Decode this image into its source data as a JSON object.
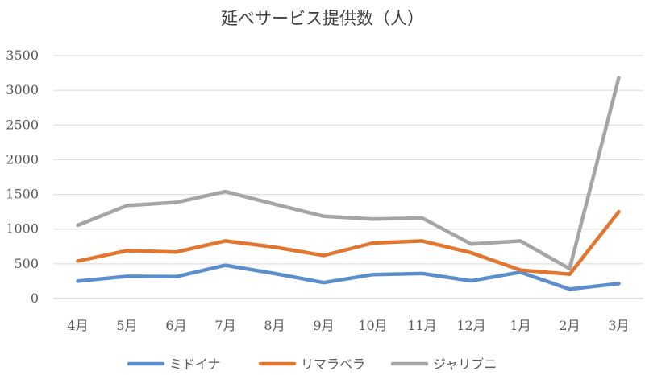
{
  "chart_data": {
    "type": "line",
    "title": "延べサービス提供数（人）",
    "categories": [
      "4月",
      "5月",
      "6月",
      "7月",
      "8月",
      "9月",
      "10月",
      "11月",
      "12月",
      "1月",
      "2月",
      "3月"
    ],
    "ylim": [
      0,
      3500
    ],
    "yticks": [
      0,
      500,
      1000,
      1500,
      2000,
      2500,
      3000,
      3500
    ],
    "grid": true,
    "legend_position": "bottom",
    "series": [
      {
        "name": "ミドイナ",
        "color": "#5b8fcc",
        "values": [
          250,
          320,
          315,
          480,
          360,
          230,
          345,
          360,
          255,
          380,
          135,
          215
        ]
      },
      {
        "name": "リマラベラ",
        "color": "#e0762f",
        "values": [
          540,
          690,
          670,
          830,
          740,
          620,
          800,
          830,
          660,
          410,
          350,
          1250
        ]
      },
      {
        "name": "ジャリブニ",
        "color": "#a5a5a5",
        "values": [
          1055,
          1340,
          1385,
          1540,
          1360,
          1185,
          1145,
          1160,
          785,
          830,
          430,
          3180
        ]
      }
    ]
  }
}
